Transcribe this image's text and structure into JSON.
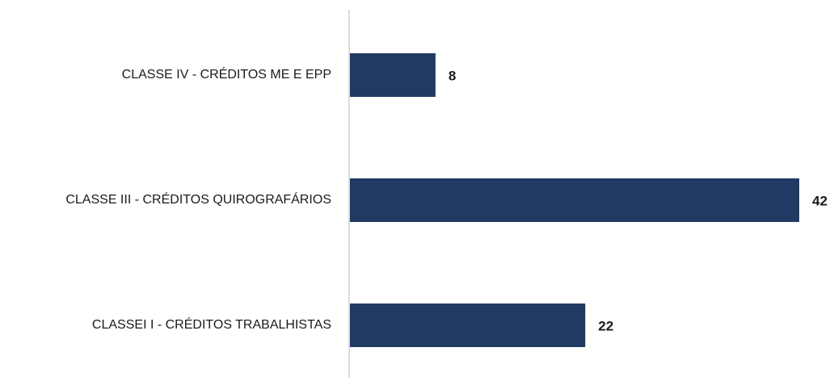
{
  "chart_data": {
    "type": "bar",
    "orientation": "horizontal",
    "categories": [
      "CLASSE IV - CRÉDITOS ME E EPP",
      "CLASSE III - CRÉDITOS QUIROGRAFÁRIOS",
      "CLASSEI I - CRÉDITOS TRABALHISTAS"
    ],
    "values": [
      8,
      42,
      22
    ],
    "color": "#213a63"
  }
}
